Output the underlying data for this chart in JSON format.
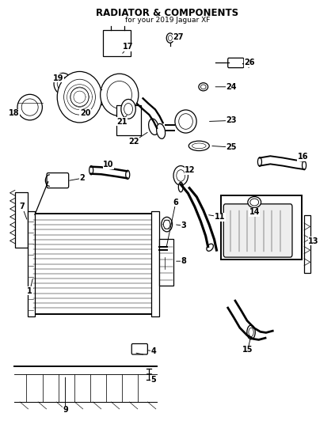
{
  "title": "RADIATOR & COMPONENTS",
  "subtitle": "for your 2019 Jaguar XF",
  "background_color": "#ffffff",
  "line_color": "#000000",
  "text_color": "#000000",
  "fig_width": 4.23,
  "fig_height": 5.65,
  "dpi": 100
}
